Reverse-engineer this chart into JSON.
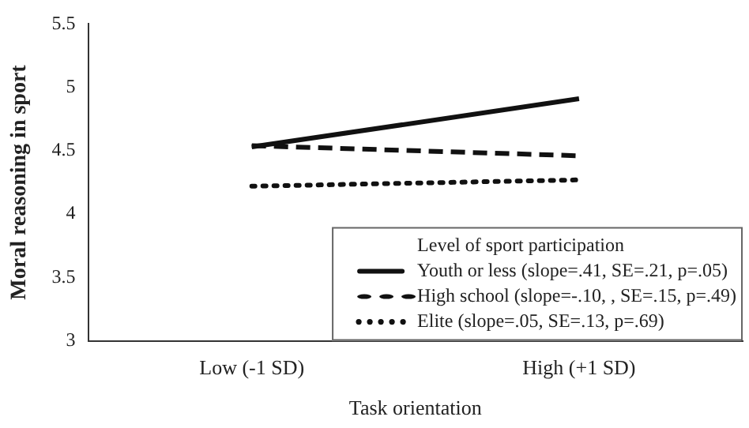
{
  "chart_data": {
    "type": "line",
    "xlabel": "Task orientation",
    "ylabel": "Moral reasoning in sport",
    "legend_title": "Level of sport participation",
    "categories": [
      "Low (-1 SD)",
      "High (+1 SD)"
    ],
    "series": [
      {
        "name": "Youth or less (slope=.41, SE=.21, p=.05)",
        "color": "#111111",
        "values": [
          4.53,
          4.91
        ],
        "line_style": "solid"
      },
      {
        "name": "High school (slope=-.10, , SE=.15, p=.49)",
        "color": "#111111",
        "values": [
          4.54,
          4.46
        ],
        "line_style": "dashed"
      },
      {
        "name": "Elite (slope=.05, SE=.13, p=.69)",
        "color": "#111111",
        "values": [
          4.22,
          4.27
        ],
        "line_style": "dotted"
      }
    ],
    "ylim": [
      3,
      5.5
    ],
    "yticks": [
      3,
      3.5,
      4,
      4.5,
      5,
      5.5
    ],
    "grid": false,
    "legend": "bottom right",
    "marker": "none"
  }
}
